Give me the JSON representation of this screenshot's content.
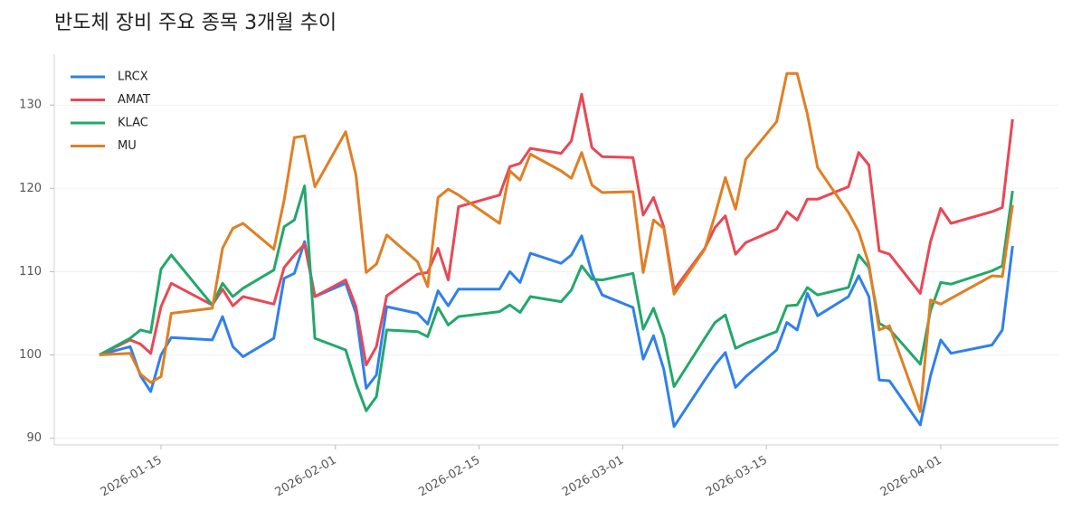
{
  "chart_data": {
    "type": "line",
    "title": "반도체 장비 주요 종목 3개월 추이",
    "x": [
      "2026-01-09",
      "2026-01-12",
      "2026-01-13",
      "2026-01-14",
      "2026-01-15",
      "2026-01-16",
      "2026-01-20",
      "2026-01-21",
      "2026-01-22",
      "2026-01-23",
      "2026-01-26",
      "2026-01-27",
      "2026-01-28",
      "2026-01-29",
      "2026-01-30",
      "2026-02-02",
      "2026-02-03",
      "2026-02-04",
      "2026-02-05",
      "2026-02-06",
      "2026-02-09",
      "2026-02-10",
      "2026-02-11",
      "2026-02-12",
      "2026-02-13",
      "2026-02-17",
      "2026-02-18",
      "2026-02-19",
      "2026-02-20",
      "2026-02-23",
      "2026-02-24",
      "2026-02-25",
      "2026-02-26",
      "2026-02-27",
      "2026-03-02",
      "2026-03-03",
      "2026-03-04",
      "2026-03-05",
      "2026-03-06",
      "2026-03-09",
      "2026-03-10",
      "2026-03-11",
      "2026-03-12",
      "2026-03-13",
      "2026-03-16",
      "2026-03-17",
      "2026-03-18",
      "2026-03-19",
      "2026-03-20",
      "2026-03-23",
      "2026-03-24",
      "2026-03-25",
      "2026-03-26",
      "2026-03-27",
      "2026-03-30",
      "2026-03-31",
      "2026-04-01",
      "2026-04-02",
      "2026-04-06",
      "2026-04-07",
      "2026-04-08"
    ],
    "series": [
      {
        "name": "LRCX",
        "color": "#2f80ed",
        "values": [
          100,
          101,
          97.5,
          95.6,
          100,
          102.1,
          101.8,
          104.6,
          101,
          99.8,
          102,
          109.2,
          109.8,
          113.6,
          107,
          108.6,
          105,
          96,
          97.6,
          105.8,
          105,
          103.7,
          107.7,
          105.9,
          107.9,
          107.9,
          110,
          108.7,
          112.2,
          111,
          112,
          114.3,
          109.8,
          107.2,
          105.7,
          99.5,
          102.3,
          98.3,
          91.4,
          97,
          98.8,
          100.3,
          96.1,
          97.4,
          100.6,
          103.9,
          103,
          107.4,
          104.7,
          107,
          109.5,
          107,
          97,
          96.9,
          91.6,
          97.5,
          101.8,
          100.2,
          101.2,
          103,
          113.1
        ]
      },
      {
        "name": "AMAT",
        "color": "#e84855",
        "values": [
          100,
          101.8,
          101.3,
          100.2,
          105.8,
          108.6,
          106,
          107.9,
          105.9,
          107,
          106.1,
          110.5,
          112,
          113.3,
          107,
          109,
          105.8,
          98.8,
          101,
          107.1,
          109.7,
          109.9,
          112.8,
          109,
          117.8,
          119.2,
          122.6,
          123,
          124.8,
          124.2,
          125.7,
          131.3,
          124.9,
          123.8,
          123.7,
          116.8,
          118.9,
          115.4,
          107.8,
          112.8,
          115.3,
          116.7,
          112.1,
          113.5,
          115.1,
          117.2,
          116.2,
          118.7,
          118.7,
          120.2,
          124.3,
          122.8,
          112.5,
          112.1,
          107.4,
          113.6,
          117.6,
          115.8,
          117.2,
          117.7,
          128.3
        ]
      },
      {
        "name": "KLAC",
        "color": "#22a86b",
        "values": [
          100,
          102,
          103,
          102.7,
          110.3,
          112,
          106,
          108.6,
          107,
          108,
          110.2,
          115.4,
          116.2,
          120.3,
          102,
          100.6,
          96.6,
          93.3,
          95,
          103,
          102.8,
          102.2,
          105.7,
          103.6,
          104.6,
          105.2,
          106,
          105.1,
          107,
          106.4,
          107.8,
          110.7,
          109.1,
          109,
          109.8,
          103.1,
          105.6,
          102.2,
          96.2,
          102,
          103.9,
          104.8,
          100.8,
          101.4,
          102.8,
          105.9,
          106,
          108.1,
          107.2,
          108.1,
          112,
          110.5,
          103.8,
          103.1,
          98.9,
          105.3,
          108.7,
          108.5,
          110.1,
          110.7,
          119.7
        ]
      },
      {
        "name": "MU",
        "color": "#e07f23",
        "values": [
          100,
          100.2,
          97.7,
          96.7,
          97.4,
          105,
          105.6,
          112.8,
          115.2,
          115.8,
          112.7,
          118.6,
          126.1,
          126.3,
          120.2,
          126.8,
          121.6,
          109.9,
          110.9,
          114.4,
          111.2,
          108.2,
          118.9,
          119.9,
          119.2,
          115.8,
          122.1,
          121,
          124.1,
          122.1,
          121.2,
          124.3,
          120.4,
          119.5,
          119.6,
          109.9,
          116.2,
          115.2,
          107.3,
          112.7,
          116.8,
          121.3,
          117.5,
          123.5,
          128,
          133.8,
          133.8,
          128.9,
          122.5,
          117.1,
          114.8,
          110.9,
          103,
          103.5,
          93.2,
          106.6,
          106.1,
          106.8,
          109.5,
          109.4,
          118
        ]
      }
    ],
    "xlim": [
      "2026-01-04",
      "2026-04-12"
    ],
    "xticks": [
      "2026-01-15",
      "2026-02-01",
      "2026-02-15",
      "2026-03-01",
      "2026-03-15",
      "2026-04-01"
    ],
    "ylim": [
      89.2,
      136.1
    ],
    "yticks": [
      90,
      100,
      110,
      120,
      130
    ],
    "grid": true,
    "legend": "upper-left"
  }
}
